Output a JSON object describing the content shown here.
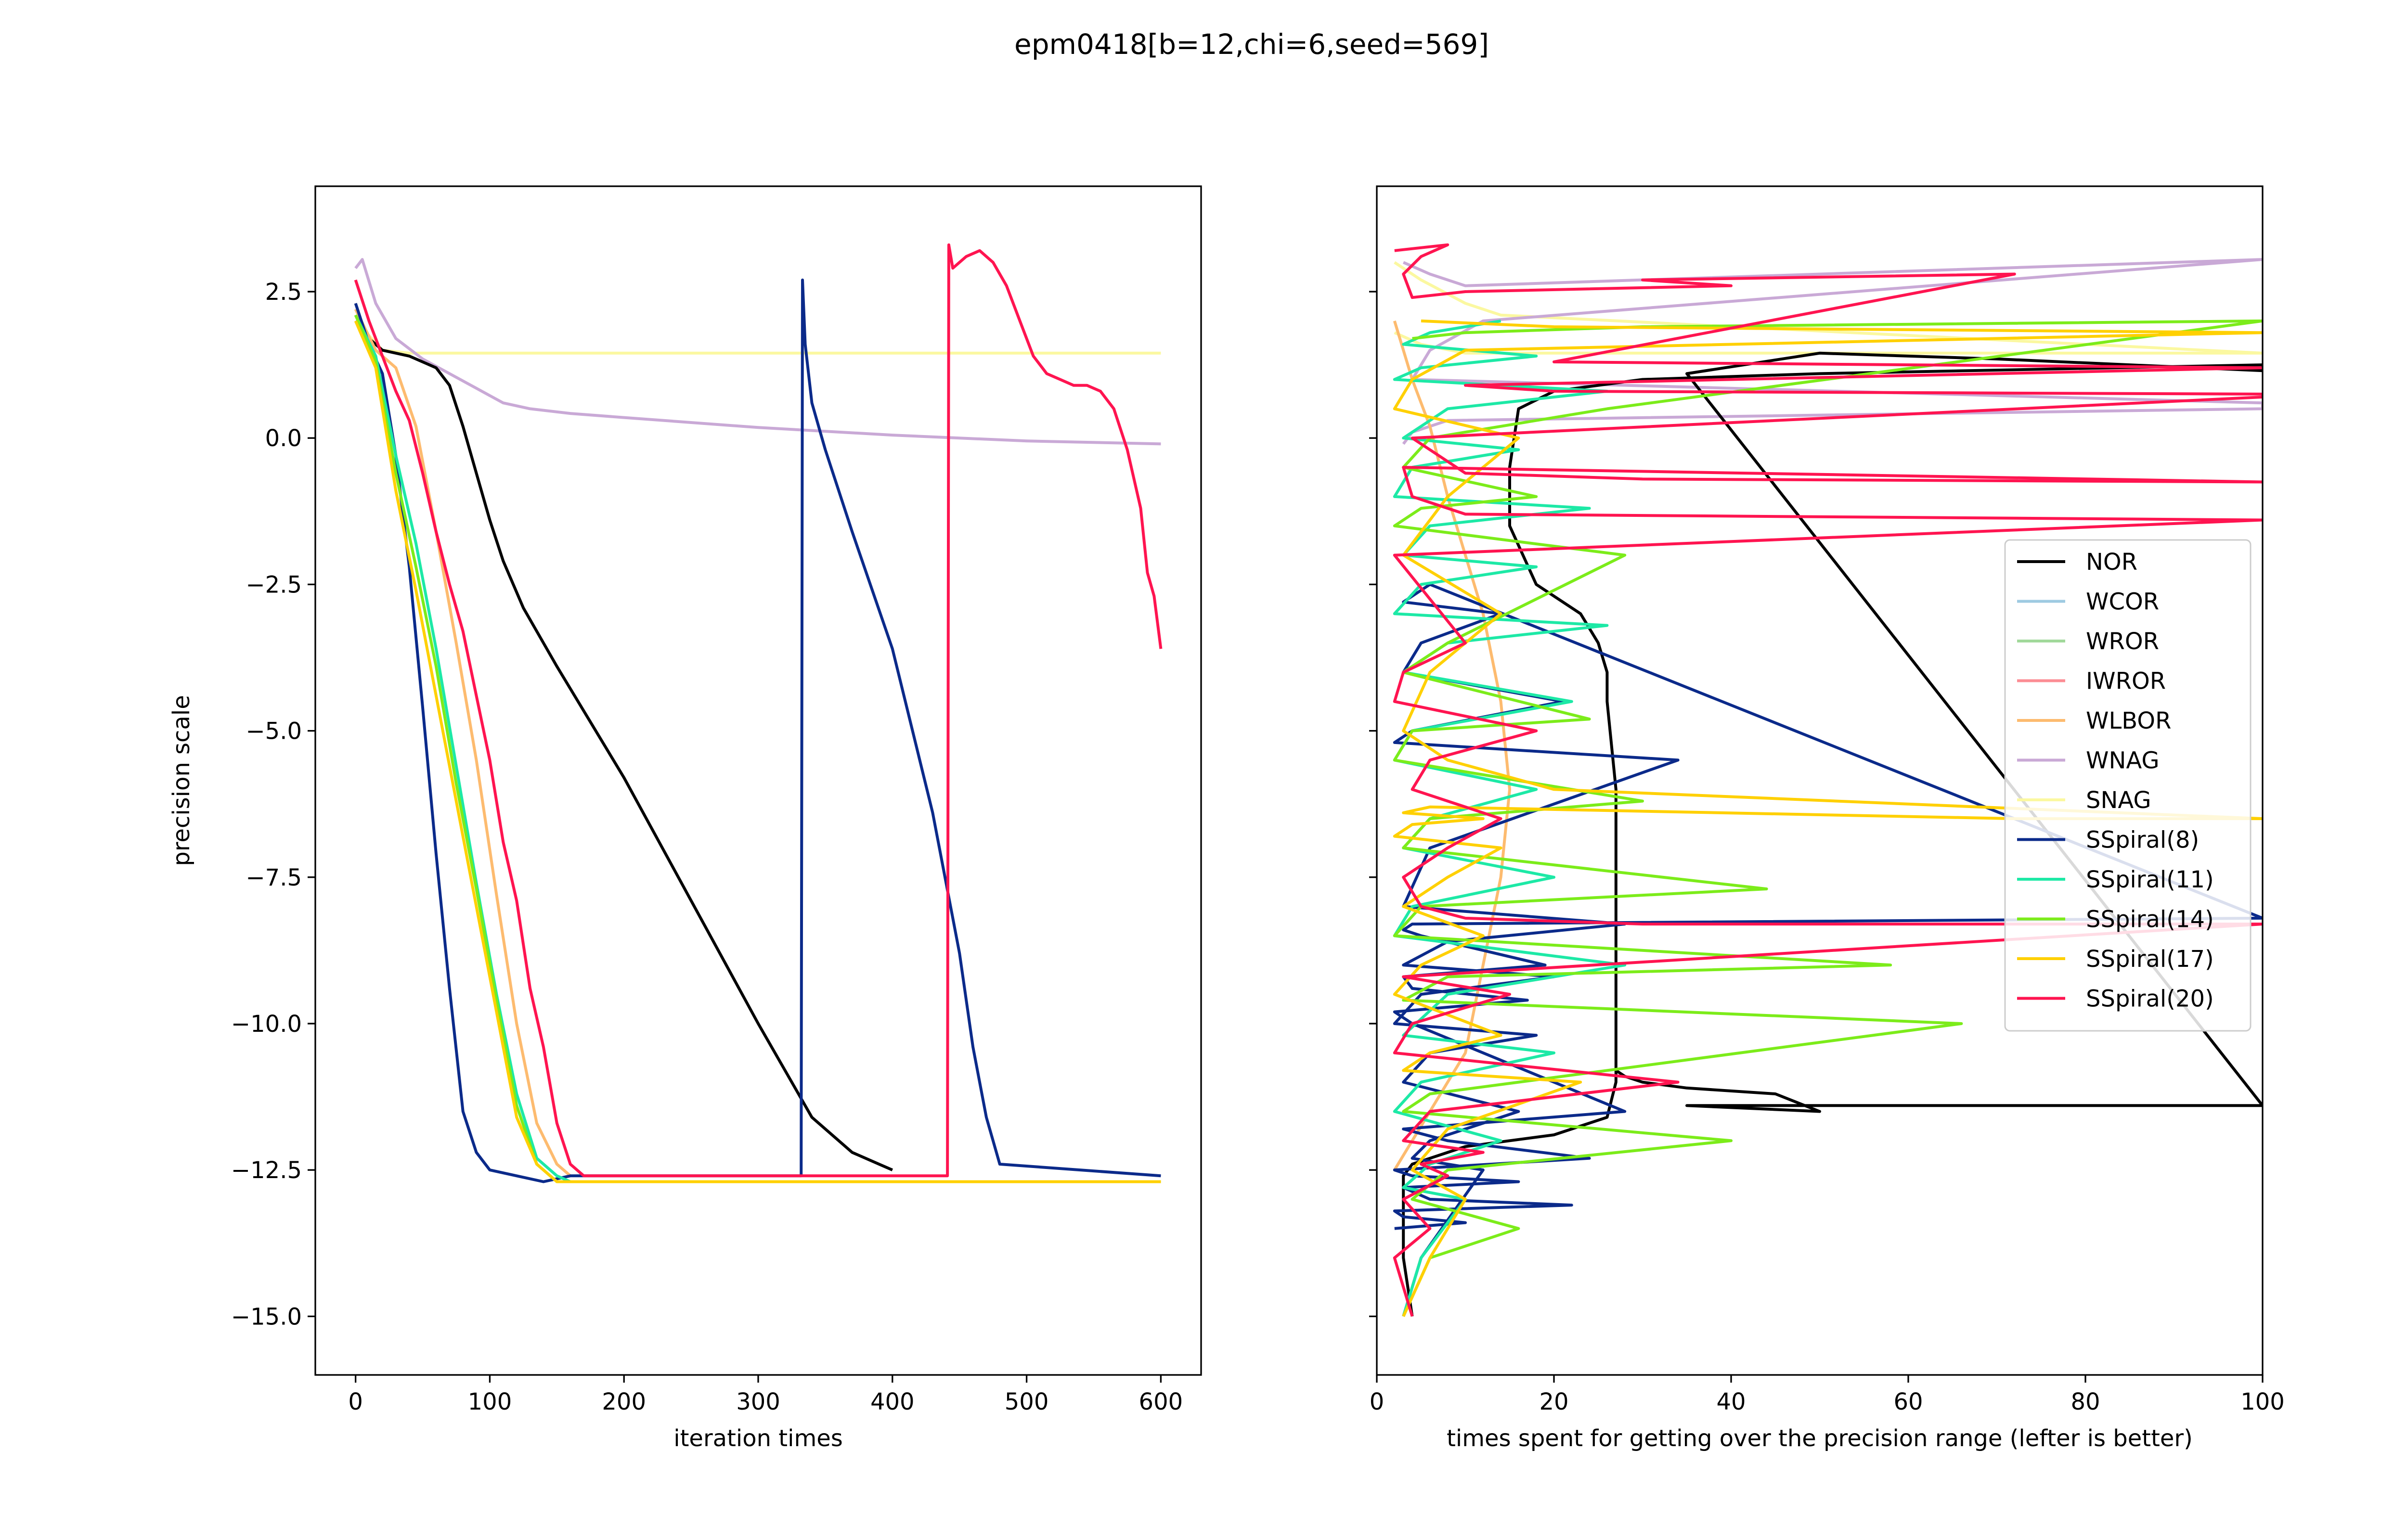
{
  "title": "epm0418[b=12,chi=6,seed=569]",
  "colors": {
    "NOR": "#000000",
    "WCOR": "#9ecae1",
    "WROR": "#a1d99b",
    "IWROR": "#fc8d94",
    "WLBOR": "#fdbb6f",
    "WNAG": "#c9a9d6",
    "SNAG": "#fbf8a0",
    "SSpiral(8)": "#0b2a8a",
    "SSpiral(11)": "#1de9a6",
    "SSpiral(14)": "#7cec1a",
    "SSpiral(17)": "#ffd000",
    "SSpiral(20)": "#ff1450"
  },
  "chart_data": [
    {
      "type": "line",
      "title": "",
      "xlabel": "iteration times",
      "ylabel": "precision scale",
      "xlim": [
        -30,
        630
      ],
      "ylim": [
        -16.0,
        4.3
      ],
      "xticks": [
        0,
        100,
        200,
        300,
        400,
        500,
        600
      ],
      "yticks": [
        2.5,
        0.0,
        -2.5,
        -5.0,
        -7.5,
        -10.0,
        -12.5,
        -15.0
      ],
      "ytick_labels": [
        "2.5",
        "0.0",
        "−2.5",
        "−5.0",
        "−7.5",
        "−10.0",
        "−12.5",
        "−15.0"
      ],
      "series": [
        {
          "name": "SNAG",
          "x": [
            0,
            20,
            40,
            100,
            200,
            300,
            400,
            500,
            600
          ],
          "y": [
            2.0,
            1.5,
            1.45,
            1.45,
            1.45,
            1.45,
            1.45,
            1.45,
            1.45
          ]
        },
        {
          "name": "WNAG",
          "x": [
            0,
            5,
            15,
            30,
            50,
            70,
            90,
            110,
            130,
            160,
            200,
            300,
            400,
            500,
            600
          ],
          "y": [
            2.9,
            3.05,
            2.3,
            1.7,
            1.35,
            1.1,
            0.85,
            0.6,
            0.5,
            0.42,
            0.35,
            0.18,
            0.05,
            -0.05,
            -0.1
          ]
        },
        {
          "name": "NOR",
          "x": [
            0,
            10,
            20,
            40,
            60,
            70,
            80,
            90,
            100,
            110,
            125,
            150,
            200,
            250,
            300,
            340,
            370,
            390,
            400
          ],
          "y": [
            2.0,
            1.7,
            1.5,
            1.4,
            1.2,
            0.9,
            0.2,
            -0.6,
            -1.4,
            -2.1,
            -2.9,
            -3.9,
            -5.8,
            -7.9,
            -10.0,
            -11.6,
            -12.2,
            -12.4,
            -12.5
          ]
        },
        {
          "name": "WLBOR",
          "x": [
            0,
            15,
            30,
            45,
            60,
            75,
            90,
            105,
            120,
            135,
            150,
            160
          ],
          "y": [
            2.2,
            1.5,
            1.2,
            0.2,
            -1.6,
            -3.5,
            -5.5,
            -7.8,
            -10.0,
            -11.7,
            -12.4,
            -12.6
          ]
        },
        {
          "name": "SSpiral(8)",
          "x": [
            0,
            10,
            20,
            30,
            40,
            50,
            60,
            70,
            80,
            90,
            100,
            120,
            140,
            160,
            200,
            250,
            300,
            332,
            333,
            335,
            340,
            350,
            370,
            400,
            430,
            450,
            460,
            470,
            480,
            600
          ],
          "y": [
            2.3,
            1.6,
            1.1,
            -0.3,
            -2.2,
            -4.6,
            -7.1,
            -9.4,
            -11.5,
            -12.2,
            -12.5,
            -12.6,
            -12.7,
            -12.6,
            -12.6,
            -12.6,
            -12.6,
            -12.6,
            2.7,
            1.6,
            0.6,
            -0.2,
            -1.6,
            -3.6,
            -6.4,
            -8.8,
            -10.4,
            -11.6,
            -12.4,
            -12.6
          ]
        },
        {
          "name": "SSpiral(11)",
          "x": [
            0,
            15,
            30,
            45,
            60,
            75,
            90,
            105,
            120,
            135,
            150,
            160,
            200,
            300,
            400,
            500,
            600
          ],
          "y": [
            2.1,
            1.4,
            -0.3,
            -1.8,
            -3.6,
            -5.6,
            -7.6,
            -9.5,
            -11.2,
            -12.3,
            -12.6,
            -12.7,
            -12.7,
            -12.7,
            -12.7,
            -12.7,
            -12.7
          ]
        },
        {
          "name": "SSpiral(14)",
          "x": [
            0,
            15,
            30,
            45,
            60,
            75,
            90,
            105,
            120,
            135,
            150,
            160,
            200,
            300,
            400,
            500,
            600
          ],
          "y": [
            2.1,
            1.3,
            -0.6,
            -2.2,
            -3.9,
            -5.9,
            -7.7,
            -9.6,
            -11.4,
            -12.4,
            -12.7,
            -12.7,
            -12.7,
            -12.7,
            -12.7,
            -12.7,
            -12.7
          ]
        },
        {
          "name": "SSpiral(17)",
          "x": [
            0,
            15,
            30,
            45,
            60,
            75,
            90,
            105,
            120,
            135,
            150,
            160,
            200,
            300,
            400,
            500,
            600
          ],
          "y": [
            2.0,
            1.2,
            -0.9,
            -2.6,
            -4.4,
            -6.2,
            -8.0,
            -9.8,
            -11.6,
            -12.4,
            -12.7,
            -12.7,
            -12.7,
            -12.7,
            -12.7,
            -12.7,
            -12.7
          ]
        },
        {
          "name": "SSpiral(20)",
          "x": [
            0,
            10,
            20,
            30,
            40,
            50,
            60,
            70,
            80,
            90,
            100,
            110,
            120,
            130,
            140,
            150,
            160,
            170,
            200,
            300,
            400,
            441,
            442,
            445,
            455,
            465,
            475,
            485,
            495,
            505,
            515,
            525,
            535,
            545,
            555,
            565,
            575,
            585,
            590,
            595,
            600
          ],
          "y": [
            2.7,
            2.0,
            1.4,
            0.8,
            0.3,
            -0.6,
            -1.6,
            -2.5,
            -3.3,
            -4.4,
            -5.5,
            -6.9,
            -7.9,
            -9.4,
            -10.4,
            -11.7,
            -12.4,
            -12.6,
            -12.6,
            -12.6,
            -12.6,
            -12.6,
            3.3,
            2.9,
            3.1,
            3.2,
            3.0,
            2.6,
            2.0,
            1.4,
            1.1,
            1.0,
            0.9,
            0.9,
            0.8,
            0.5,
            -0.2,
            -1.2,
            -2.3,
            -2.7,
            -3.6
          ]
        }
      ]
    },
    {
      "type": "line",
      "title": "",
      "xlabel": "times spent for getting over the precision range (lefter is better)",
      "ylabel": "",
      "xlim": [
        0,
        100
      ],
      "ylim": [
        -16.0,
        4.3
      ],
      "xticks": [
        0,
        20,
        40,
        60,
        80,
        100
      ],
      "legend_position": "center-right",
      "legend": [
        "NOR",
        "WCOR",
        "WROR",
        "IWROR",
        "WLBOR",
        "WNAG",
        "SNAG",
        "SSpiral(8)",
        "SSpiral(11)",
        "SSpiral(14)",
        "SSpiral(17)",
        "SSpiral(20)"
      ],
      "series": [
        {
          "name": "SNAG",
          "x": [
            2,
            5,
            10,
            14,
            100,
            20,
            10,
            5,
            2
          ],
          "y": [
            3.0,
            2.7,
            2.3,
            2.1,
            1.45,
            1.45,
            1.45,
            1.6,
            1.8
          ]
        },
        {
          "name": "WNAG",
          "x": [
            3,
            6,
            10,
            100,
            100,
            12,
            6,
            4,
            100,
            100,
            8,
            4,
            3
          ],
          "y": [
            3.0,
            2.8,
            2.6,
            3.05,
            3.05,
            2.0,
            1.5,
            1.0,
            0.6,
            0.5,
            0.3,
            0.1,
            -0.1
          ]
        },
        {
          "name": "WLBOR",
          "x": [
            2,
            6,
            10,
            12,
            14,
            15,
            14,
            12,
            10,
            8,
            6,
            4,
            2
          ],
          "y": [
            -12.5,
            -11.5,
            -10.5,
            -9.0,
            -7.5,
            -6.0,
            -4.5,
            -3.0,
            -2.0,
            -1.0,
            0.2,
            1.0,
            2.0
          ]
        },
        {
          "name": "NOR",
          "x": [
            4,
            3,
            3,
            3,
            3,
            4,
            6,
            8,
            10,
            15,
            20,
            26,
            27,
            27,
            27,
            27,
            26,
            26,
            25,
            23,
            18,
            15,
            15,
            16,
            20,
            30,
            50,
            100,
            100,
            70,
            50,
            35,
            100,
            100,
            35,
            50,
            45,
            35,
            30,
            28,
            27
          ],
          "y": [
            -15.0,
            -14.0,
            -13.2,
            -12.8,
            -12.6,
            -12.4,
            -12.3,
            -12.2,
            -12.1,
            -12.0,
            -11.9,
            -11.6,
            -11.0,
            -10.0,
            -8.0,
            -6.0,
            -4.5,
            -4.0,
            -3.5,
            -3.0,
            -2.5,
            -1.5,
            -0.5,
            0.5,
            0.8,
            1.0,
            1.1,
            1.25,
            1.15,
            1.35,
            1.45,
            1.1,
            -11.4,
            -11.4,
            -11.4,
            -11.5,
            -11.2,
            -11.1,
            -11.0,
            -10.9,
            -10.8
          ]
        },
        {
          "name": "SSpiral(8)",
          "x": [
            3,
            5,
            12,
            4,
            6,
            16,
            3,
            6,
            18,
            2,
            5,
            20,
            3,
            8,
            28,
            3,
            6,
            34,
            2,
            4,
            21,
            3,
            5,
            14,
            3,
            6,
            100,
            4,
            3,
            5,
            19,
            3,
            4,
            17,
            2,
            4,
            28,
            3,
            8,
            24,
            2,
            4,
            16,
            3,
            6,
            22,
            2,
            3,
            10,
            2
          ],
          "y": [
            -15.0,
            -14.0,
            -12.5,
            -12.3,
            -12.0,
            -11.5,
            -11.0,
            -10.5,
            -10.2,
            -10.0,
            -9.5,
            -9.2,
            -9.0,
            -8.6,
            -8.3,
            -8.0,
            -7.0,
            -5.5,
            -5.2,
            -5.0,
            -4.5,
            -4.0,
            -3.5,
            -3.0,
            -2.8,
            -2.5,
            -8.2,
            -8.3,
            -8.4,
            -8.5,
            -9.0,
            -9.2,
            -9.4,
            -9.6,
            -9.8,
            -10.0,
            -11.5,
            -11.8,
            -12.0,
            -12.3,
            -12.5,
            -12.6,
            -12.7,
            -12.8,
            -13.0,
            -13.1,
            -13.2,
            -13.3,
            -13.4,
            -13.5
          ]
        },
        {
          "name": "SSpiral(11)",
          "x": [
            3,
            5,
            10,
            3,
            6,
            14,
            2,
            5,
            20,
            3,
            8,
            28,
            2,
            4,
            20,
            3,
            6,
            18,
            2,
            4,
            22,
            3,
            8,
            26,
            2,
            5,
            18,
            3,
            6,
            24,
            2,
            4,
            16,
            3,
            8,
            26,
            2,
            5,
            18,
            3,
            6,
            14
          ],
          "y": [
            -15.0,
            -14.0,
            -13.0,
            -12.8,
            -12.4,
            -12.0,
            -11.5,
            -11.0,
            -10.5,
            -10.2,
            -9.5,
            -9.0,
            -8.5,
            -8.0,
            -7.5,
            -7.0,
            -6.5,
            -6.0,
            -5.5,
            -5.0,
            -4.5,
            -4.0,
            -3.5,
            -3.2,
            -3.0,
            -2.5,
            -2.2,
            -2.0,
            -1.5,
            -1.2,
            -1.0,
            -0.5,
            -0.2,
            0.0,
            0.5,
            0.8,
            1.0,
            1.2,
            1.4,
            1.6,
            1.8,
            2.0
          ]
        },
        {
          "name": "SSpiral(14)",
          "x": [
            3,
            6,
            16,
            4,
            8,
            40,
            3,
            6,
            66,
            3,
            8,
            58,
            2,
            5,
            44,
            3,
            6,
            30,
            2,
            4,
            24,
            3,
            8,
            28,
            2,
            5,
            18,
            3,
            6,
            26,
            100,
            30,
            10,
            4
          ],
          "y": [
            -15.0,
            -14.0,
            -13.5,
            -13.0,
            -12.5,
            -12.0,
            -11.5,
            -11.2,
            -10.0,
            -9.6,
            -9.2,
            -9.0,
            -8.5,
            -8.0,
            -7.7,
            -7.0,
            -6.5,
            -6.2,
            -5.5,
            -5.0,
            -4.8,
            -4.0,
            -3.5,
            -2.0,
            -1.5,
            -1.2,
            -1.0,
            -0.5,
            0.0,
            0.5,
            2.0,
            1.9,
            1.8,
            1.7
          ]
        },
        {
          "name": "SSpiral(17)",
          "x": [
            3,
            6,
            10,
            4,
            8,
            23,
            3,
            6,
            14,
            2,
            5,
            12,
            3,
            8,
            14,
            2,
            4,
            12,
            3,
            6,
            72,
            100,
            20,
            8,
            3,
            6,
            14,
            3,
            8,
            16,
            2,
            4,
            10,
            100,
            20,
            5
          ],
          "y": [
            -15.0,
            -14.0,
            -13.0,
            -12.5,
            -11.8,
            -11.0,
            -10.8,
            -10.5,
            -10.2,
            -9.5,
            -9.0,
            -8.5,
            -8.0,
            -7.5,
            -7.0,
            -6.8,
            -6.6,
            -6.5,
            -6.4,
            -6.3,
            -6.5,
            -6.5,
            -6.0,
            -5.5,
            -5.0,
            -4.0,
            -3.0,
            -2.0,
            -1.0,
            0.0,
            0.5,
            1.0,
            1.5,
            1.8,
            1.9,
            2.0
          ]
        },
        {
          "name": "SSpiral(20)",
          "x": [
            4,
            2,
            6,
            3,
            8,
            5,
            12,
            3,
            6,
            34,
            2,
            4,
            15,
            3,
            100,
            30,
            10,
            5,
            3,
            8,
            14,
            4,
            6,
            18,
            2,
            3,
            10,
            2,
            100,
            10,
            4,
            3,
            100,
            30,
            10,
            4,
            100,
            100,
            20,
            10,
            100,
            20,
            72,
            30,
            40,
            10,
            4,
            3,
            5,
            8,
            2
          ],
          "y": [
            -15.0,
            -14.0,
            -13.5,
            -13.0,
            -12.6,
            -12.4,
            -12.2,
            -12.0,
            -11.5,
            -11.0,
            -10.5,
            -10.0,
            -9.5,
            -9.2,
            -8.3,
            -8.3,
            -8.2,
            -8.0,
            -7.5,
            -7.0,
            -6.5,
            -6.0,
            -5.5,
            -5.0,
            -4.5,
            -4.0,
            -3.5,
            -2.0,
            -1.4,
            -1.3,
            -1.0,
            -0.5,
            -0.75,
            -0.7,
            -0.6,
            0.0,
            0.7,
            0.75,
            0.8,
            0.9,
            1.2,
            1.3,
            2.8,
            2.7,
            2.6,
            2.5,
            2.4,
            2.8,
            3.1,
            3.3,
            3.2
          ]
        }
      ]
    }
  ]
}
